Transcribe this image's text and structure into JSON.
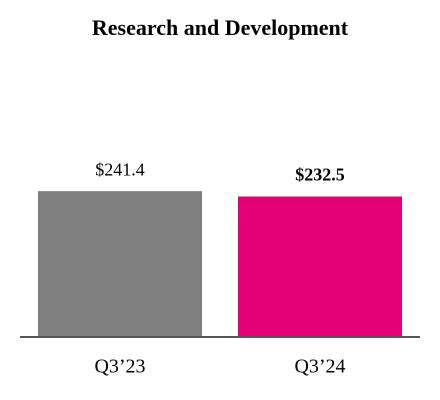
{
  "chart_data": {
    "type": "bar",
    "title": "Research and Development",
    "categories": [
      "Q3’23",
      "Q3’24"
    ],
    "values": [
      241.4,
      232.5
    ],
    "value_labels": [
      "$241.4",
      "$232.5"
    ],
    "value_label_bold": [
      false,
      true
    ],
    "colors": [
      "#808080",
      "#e20074"
    ]
  }
}
